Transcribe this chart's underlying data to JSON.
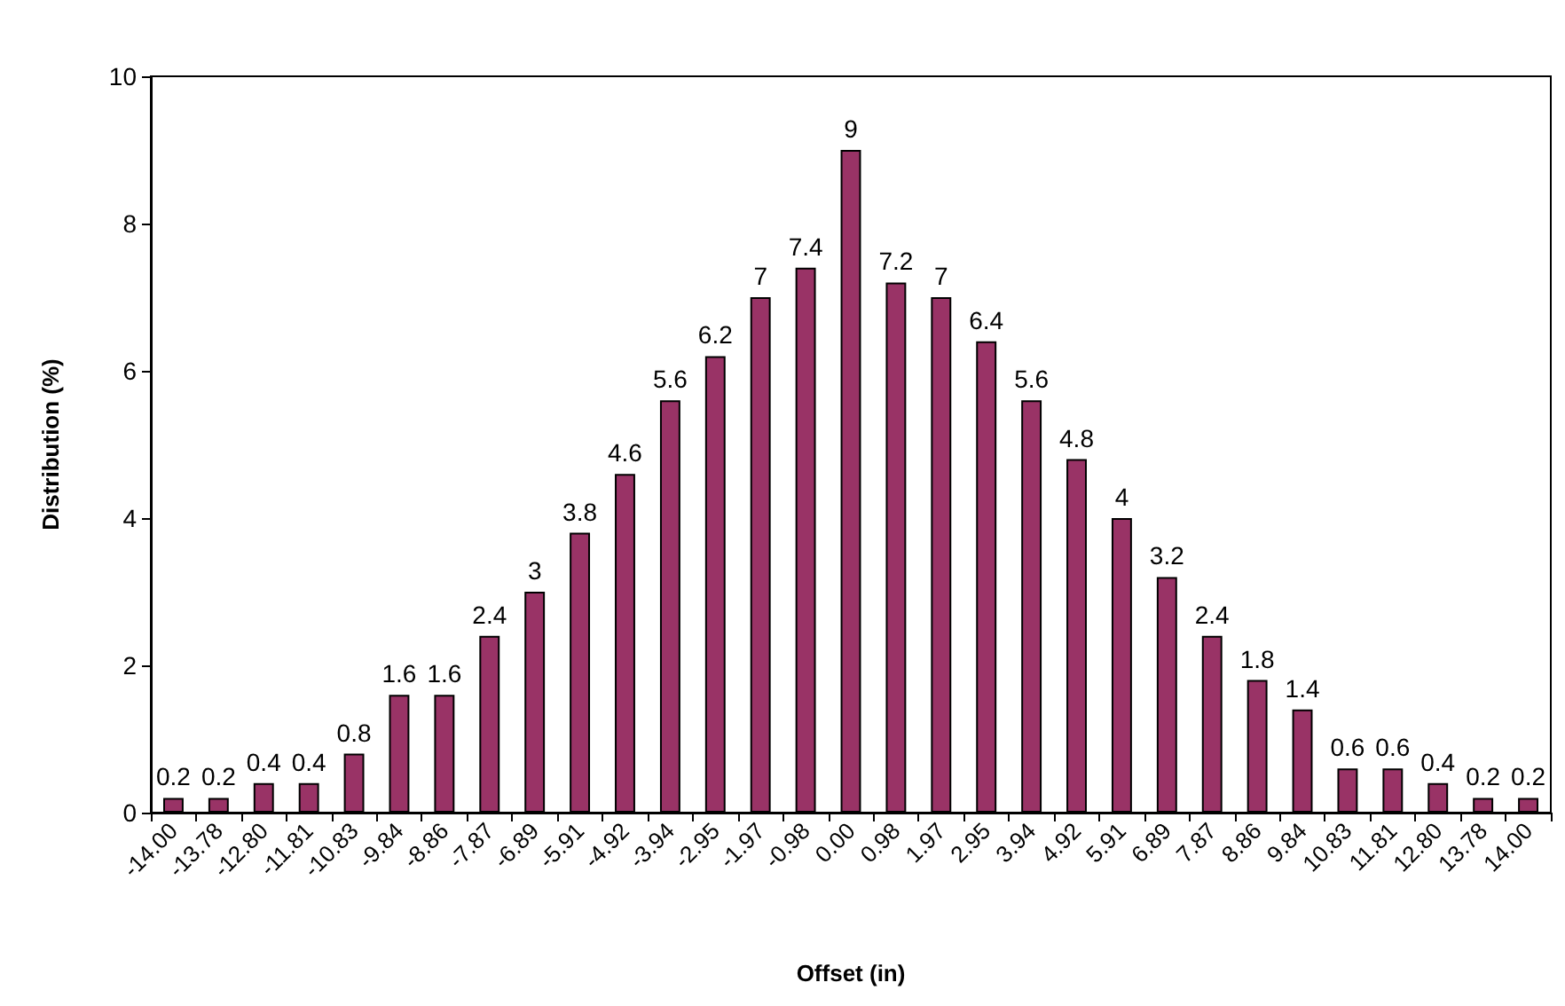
{
  "chart_data": {
    "type": "bar",
    "xlabel": "Offset (in)",
    "ylabel": "Distribution (%)",
    "categories": [
      "-14.00",
      "-13.78",
      "-12.80",
      "-11.81",
      "-10.83",
      "-9.84",
      "-8.86",
      "-7.87",
      "-6.89",
      "-5.91",
      "-4.92",
      "-3.94",
      "-2.95",
      "-1.97",
      "-0.98",
      "0.00",
      "0.98",
      "1.97",
      "2.95",
      "3.94",
      "4.92",
      "5.91",
      "6.89",
      "7.87",
      "8.86",
      "9.84",
      "10.83",
      "11.81",
      "12.80",
      "13.78",
      "14.00"
    ],
    "values": [
      0.2,
      0.2,
      0.4,
      0.4,
      0.8,
      1.6,
      1.6,
      2.4,
      3,
      3.8,
      4.6,
      5.6,
      6.2,
      7,
      7.4,
      9,
      7.2,
      7,
      6.4,
      5.6,
      4.8,
      4,
      3.2,
      2.4,
      1.8,
      1.4,
      0.6,
      0.6,
      0.4,
      0.2,
      0.2
    ],
    "color": "#993366",
    "ylim": [
      0,
      10
    ],
    "yticks": [
      0,
      2,
      4,
      6,
      8,
      10
    ],
    "grid": false,
    "data_labels": true
  }
}
